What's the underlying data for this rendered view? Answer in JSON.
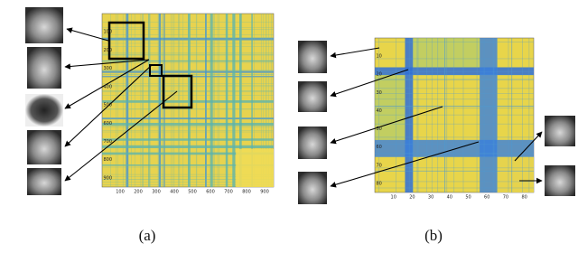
{
  "panel_a": {
    "label": "(a)",
    "x_ticks": [
      "100",
      "200",
      "300",
      "400",
      "500",
      "600",
      "700",
      "800",
      "900"
    ],
    "y_ticks": [
      "100",
      "200",
      "300",
      "400",
      "500",
      "600",
      "700",
      "800",
      "900"
    ]
  },
  "panel_b": {
    "label": "(b)",
    "x_ticks": [
      "10",
      "20",
      "30",
      "40",
      "50",
      "60",
      "70",
      "80"
    ],
    "y_ticks": [
      "10",
      "20",
      "30",
      "40",
      "50",
      "60",
      "70",
      "80"
    ]
  }
}
